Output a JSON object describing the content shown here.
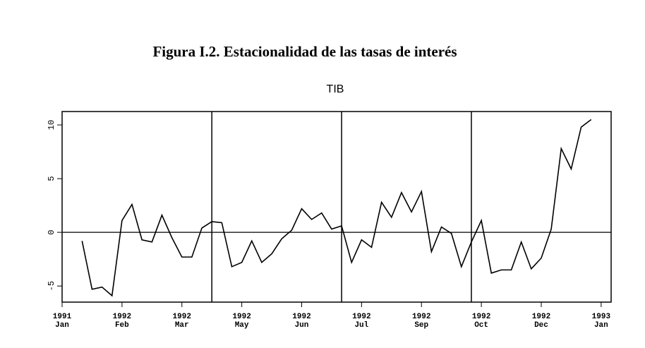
{
  "chart_data": {
    "type": "line",
    "figure_title": "Figura I.2. Estacionalidad de las tasas de interés",
    "title": "TIB",
    "x": [
      2,
      3,
      4,
      5,
      6,
      7,
      8,
      9,
      10,
      11,
      12,
      13,
      14,
      15,
      16,
      17,
      18,
      19,
      20,
      21,
      22,
      23,
      24,
      25,
      26,
      27,
      28,
      29,
      30,
      31,
      32,
      33,
      34,
      35,
      36,
      37,
      38,
      39,
      40,
      41,
      42,
      43,
      44,
      45,
      46,
      47,
      48,
      49,
      50,
      51,
      52,
      53
    ],
    "series": [
      {
        "name": "TIB",
        "color": "#000000",
        "values": [
          -0.8,
          -5.3,
          -5.1,
          -5.9,
          1.1,
          2.6,
          -0.7,
          -0.9,
          1.6,
          -0.5,
          -2.3,
          -2.3,
          0.4,
          1.0,
          0.9,
          -3.2,
          -2.8,
          -0.8,
          -2.8,
          -2.0,
          -0.6,
          0.2,
          2.2,
          1.2,
          1.8,
          0.3,
          0.6,
          -2.8,
          -0.7,
          -1.4,
          2.8,
          1.4,
          3.7,
          1.9,
          3.8,
          -1.8,
          0.5,
          -0.1,
          -3.2,
          -0.9,
          1.1,
          -3.8,
          -3.5,
          -3.5,
          -0.9,
          -3.4,
          -2.4,
          0.3,
          7.8,
          5.9,
          9.8,
          10.5
        ]
      }
    ],
    "xlim": [
      0,
      55
    ],
    "xticks": [
      {
        "value": 0,
        "label": "1991\nJan"
      },
      {
        "value": 6,
        "label": "1992\nFeb"
      },
      {
        "value": 12,
        "label": "1992\nMar"
      },
      {
        "value": 18,
        "label": "1992\nMay"
      },
      {
        "value": 24,
        "label": "1992\nJun"
      },
      {
        "value": 30,
        "label": "1992\nJul"
      },
      {
        "value": 36,
        "label": "1992\nSep"
      },
      {
        "value": 42,
        "label": "1992\nOct"
      },
      {
        "value": 48,
        "label": "1992\nDec"
      },
      {
        "value": 54,
        "label": "1993\nJan"
      }
    ],
    "ylim": [
      -6.5,
      11.25
    ],
    "yticks": [
      -5,
      0,
      5,
      10
    ],
    "vlines": [
      15,
      28,
      41
    ],
    "hline": 0
  }
}
